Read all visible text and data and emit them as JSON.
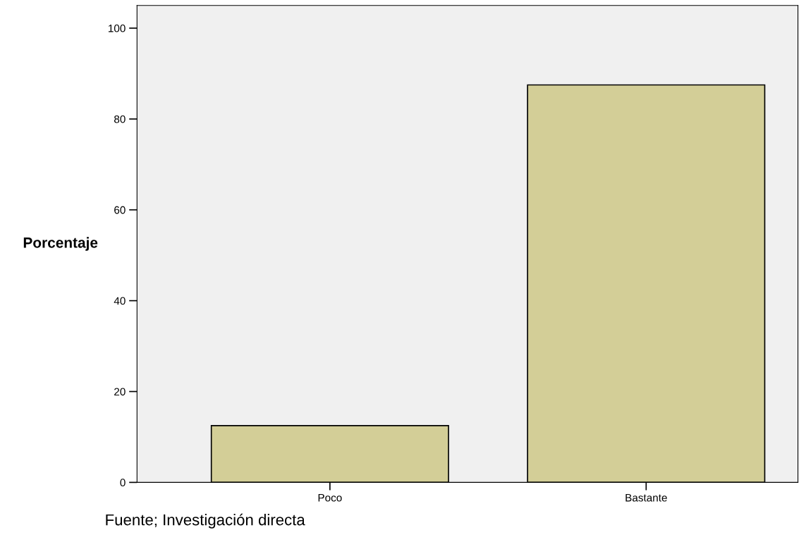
{
  "chart_data": {
    "type": "bar",
    "ylabel": "Porcentaje",
    "categories": [
      "Poco",
      "Bastante"
    ],
    "values": [
      12.5,
      87.5
    ],
    "color": "#d3ce97",
    "ylim": [
      0,
      105
    ],
    "yticks": [
      0,
      20,
      40,
      60,
      80,
      100
    ],
    "grid": false,
    "annotations": [
      "Fuente; Investigación directa"
    ]
  }
}
